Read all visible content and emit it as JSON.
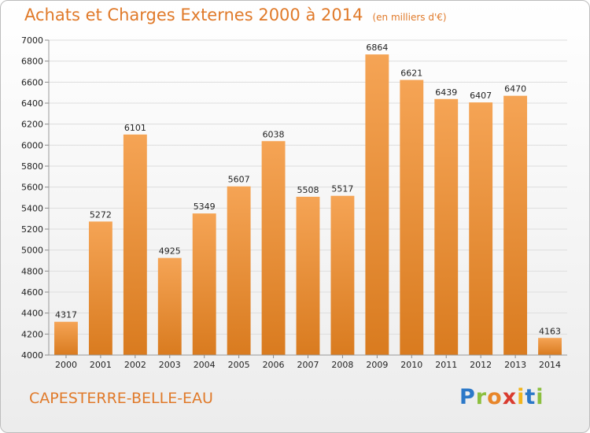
{
  "chart_data": {
    "type": "bar",
    "title": "Achats et Charges Externes 2000 à 2014",
    "subtitle": "(en milliers d'€)",
    "categories": [
      "2000",
      "2001",
      "2002",
      "2003",
      "2004",
      "2005",
      "2006",
      "2007",
      "2008",
      "2009",
      "2010",
      "2011",
      "2012",
      "2013",
      "2014"
    ],
    "values": [
      4317,
      5272,
      6101,
      4925,
      5349,
      5607,
      6038,
      5508,
      5517,
      6864,
      6621,
      6439,
      6407,
      6470,
      4163
    ],
    "ylim": [
      4000,
      7000
    ],
    "yticks": [
      4000,
      4200,
      4400,
      4600,
      4800,
      5000,
      5200,
      5400,
      5600,
      5800,
      6000,
      6200,
      6400,
      6600,
      6800,
      7000
    ],
    "grid": true,
    "bar_color_top": "#f5a455",
    "bar_color_bottom": "#d97b1f"
  },
  "footer": {
    "place": "CAPESTERRE-BELLE-EAU",
    "logo": "Proxiti"
  },
  "colors": {
    "accent": "#e07a2a"
  }
}
